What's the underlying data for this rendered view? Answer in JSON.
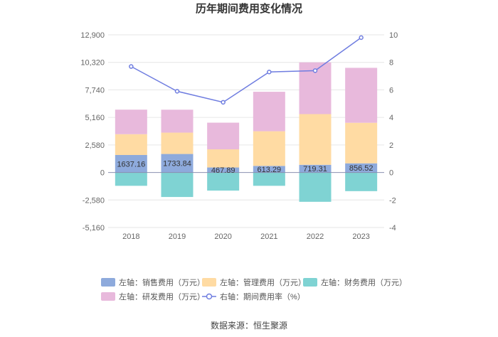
{
  "chart_data": {
    "type": "bar",
    "title": "历年期间费用变化情况",
    "categories": [
      "2018",
      "2019",
      "2020",
      "2021",
      "2022",
      "2023"
    ],
    "left_axis": {
      "ylim": [
        -5160,
        12900
      ],
      "ticks": [
        -5160,
        -2580,
        0,
        2580,
        5160,
        7740,
        10320,
        12900
      ],
      "tick_labels": [
        "-5,160",
        "-2,580",
        "0",
        "2,580",
        "5,160",
        "7,740",
        "10,320",
        "12,900"
      ]
    },
    "right_axis": {
      "ylim": [
        -4,
        10
      ],
      "ticks": [
        -4,
        -2,
        0,
        2,
        4,
        6,
        8,
        10
      ],
      "tick_labels": [
        "-4",
        "-2",
        "0",
        "2",
        "4",
        "6",
        "8",
        "10"
      ]
    },
    "series": [
      {
        "name": "左轴：销售费用（万元）",
        "type": "bar",
        "color": "#8eaadc",
        "values": [
          1637.16,
          1733.84,
          467.89,
          613.29,
          719.31,
          856.52
        ],
        "labels": [
          "1637.16",
          "1733.84",
          "467.89",
          "613.29",
          "719.31",
          "856.52"
        ]
      },
      {
        "name": "左轴：管理费用（万元）",
        "type": "bar",
        "color": "#ffdba3",
        "values": [
          1950,
          2000,
          1700,
          3250,
          4750,
          3800
        ]
      },
      {
        "name": "左轴：财务费用（万元）",
        "type": "bar",
        "color": "#7fd3d3",
        "values": [
          -1250,
          -2300,
          -1700,
          -1250,
          -2750,
          -1750
        ]
      },
      {
        "name": "左轴：研发费用（万元）",
        "type": "bar",
        "color": "#e8b9dc",
        "values": [
          2300,
          2150,
          2500,
          3700,
          4850,
          5150
        ]
      },
      {
        "name": "右轴：期间费用率（%）",
        "type": "line",
        "color": "#6f7de0",
        "values": [
          7.7,
          5.9,
          5.1,
          7.3,
          7.4,
          9.8
        ]
      }
    ],
    "legend_position": "bottom",
    "source_text": "数据来源：恒生聚源"
  }
}
